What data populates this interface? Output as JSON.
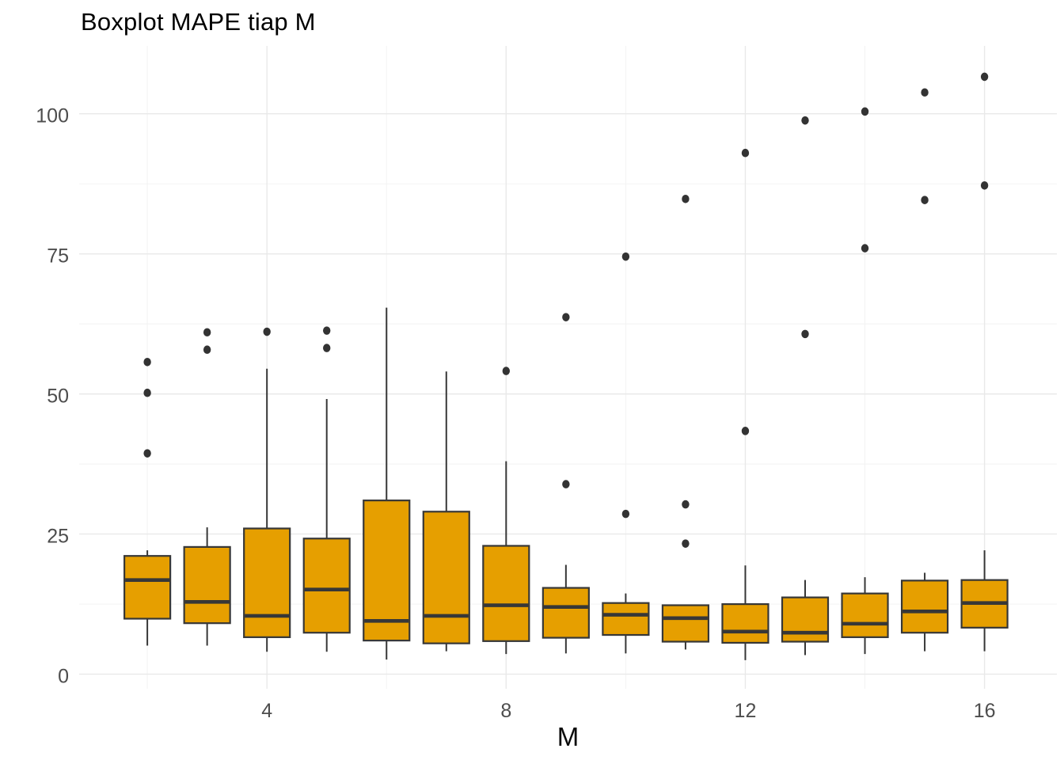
{
  "chart_data": {
    "type": "boxplot",
    "title": "Boxplot MAPE tiap M",
    "xlabel": "M",
    "ylabel": "",
    "x_ticks": [
      4,
      8,
      12,
      16
    ],
    "y_ticks": [
      0,
      25,
      50,
      75,
      100
    ],
    "x_minor_gridlines": [
      2,
      6,
      10,
      14
    ],
    "y_minor_gridlines": [
      12.5,
      37.5,
      62.5,
      87.5
    ],
    "xlim": [
      0.86,
      17.21
    ],
    "ylim": [
      -2.6,
      112.1
    ],
    "grid": true,
    "legend": "none",
    "box_fill": "#E69F00",
    "box_stroke": "#373737",
    "outlier_color": "#333333",
    "grid_major_color": "#E9E9E9",
    "grid_minor_color": "#F2F2F2",
    "axis_text_color": "#4D4D4D",
    "title_color": "#000000",
    "boxes": [
      {
        "m": 2,
        "whisker_low": 5.1,
        "q1": 9.9,
        "median": 16.8,
        "q3": 21.1,
        "whisker_high": 22.1,
        "outliers": [
          39.4,
          50.2,
          55.7
        ]
      },
      {
        "m": 3,
        "whisker_low": 5.1,
        "q1": 9.1,
        "median": 12.9,
        "q3": 22.7,
        "whisker_high": 26.2,
        "outliers": [
          57.9,
          61.0
        ]
      },
      {
        "m": 4,
        "whisker_low": 4.0,
        "q1": 6.6,
        "median": 10.4,
        "q3": 26.0,
        "whisker_high": 54.5,
        "outliers": [
          61.1
        ]
      },
      {
        "m": 5,
        "whisker_low": 4.0,
        "q1": 7.4,
        "median": 15.1,
        "q3": 24.2,
        "whisker_high": 49.1,
        "outliers": [
          58.2,
          61.3
        ]
      },
      {
        "m": 6,
        "whisker_low": 2.6,
        "q1": 6.0,
        "median": 9.5,
        "q3": 31.0,
        "whisker_high": 65.4,
        "outliers": []
      },
      {
        "m": 7,
        "whisker_low": 4.1,
        "q1": 5.5,
        "median": 10.4,
        "q3": 29.0,
        "whisker_high": 54.0,
        "outliers": []
      },
      {
        "m": 8,
        "whisker_low": 3.6,
        "q1": 5.9,
        "median": 12.3,
        "q3": 22.9,
        "whisker_high": 38.0,
        "outliers": [
          54.1
        ]
      },
      {
        "m": 9,
        "whisker_low": 3.7,
        "q1": 6.5,
        "median": 12.0,
        "q3": 15.4,
        "whisker_high": 19.5,
        "outliers": [
          33.9,
          63.7
        ]
      },
      {
        "m": 10,
        "whisker_low": 3.7,
        "q1": 7.0,
        "median": 10.6,
        "q3": 12.7,
        "whisker_high": 14.4,
        "outliers": [
          28.6,
          74.5
        ]
      },
      {
        "m": 11,
        "whisker_low": 4.4,
        "q1": 5.8,
        "median": 10.0,
        "q3": 12.3,
        "whisker_high": 12.3,
        "outliers": [
          23.3,
          30.3,
          84.8
        ]
      },
      {
        "m": 12,
        "whisker_low": 2.5,
        "q1": 5.6,
        "median": 7.6,
        "q3": 12.5,
        "whisker_high": 19.4,
        "outliers": [
          43.4,
          93.0
        ]
      },
      {
        "m": 13,
        "whisker_low": 3.4,
        "q1": 5.8,
        "median": 7.4,
        "q3": 13.7,
        "whisker_high": 16.8,
        "outliers": [
          60.7,
          98.8
        ]
      },
      {
        "m": 14,
        "whisker_low": 3.6,
        "q1": 6.6,
        "median": 9.0,
        "q3": 14.4,
        "whisker_high": 17.3,
        "outliers": [
          76.0,
          100.4
        ]
      },
      {
        "m": 15,
        "whisker_low": 4.1,
        "q1": 7.4,
        "median": 11.2,
        "q3": 16.7,
        "whisker_high": 18.1,
        "outliers": [
          84.6,
          103.8
        ]
      },
      {
        "m": 16,
        "whisker_low": 4.1,
        "q1": 8.3,
        "median": 12.7,
        "q3": 16.8,
        "whisker_high": 22.1,
        "outliers": [
          87.2,
          106.6
        ]
      }
    ]
  }
}
